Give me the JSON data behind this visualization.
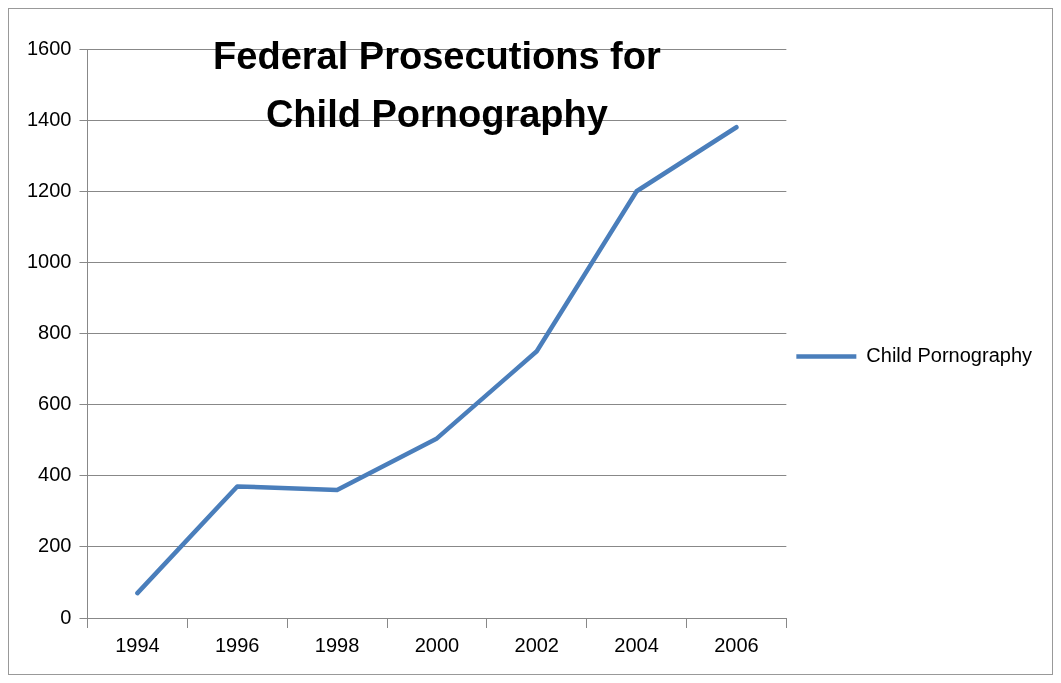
{
  "chart_data": {
    "type": "line",
    "title": "Federal Prosecutions for Child Pornography",
    "categories": [
      "1994",
      "1996",
      "1998",
      "2000",
      "2002",
      "2004",
      "2006"
    ],
    "series": [
      {
        "name": "Child Pornography",
        "color": "#4a7ebb",
        "values": [
          70,
          370,
          360,
          505,
          750,
          1200,
          1380
        ]
      }
    ],
    "ylim": [
      0,
      1600
    ],
    "yticks": [
      0,
      200,
      400,
      600,
      800,
      1000,
      1200,
      1400,
      1600
    ],
    "grid": "y",
    "legend": "right",
    "marker": "none",
    "line_style": "solid"
  }
}
